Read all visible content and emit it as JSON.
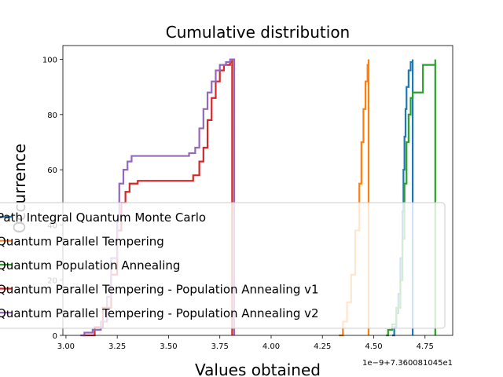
{
  "chart_data": {
    "type": "line",
    "step": true,
    "title": "Cumulative distribution",
    "xlabel": "Values obtained",
    "ylabel": "Occurrence",
    "x_offset_text": "1e−9+7.360081045e1",
    "xlim": [
      2.985,
      4.885
    ],
    "ylim": [
      0,
      105
    ],
    "x_ticks": [
      "3.00",
      "3.25",
      "3.50",
      "3.75",
      "4.00",
      "4.25",
      "4.50",
      "4.75"
    ],
    "x_tick_values": [
      3.0,
      3.25,
      3.5,
      3.75,
      4.0,
      4.25,
      4.5,
      4.75
    ],
    "y_ticks": [
      "0",
      "20",
      "40",
      "60",
      "80",
      "100"
    ],
    "y_tick_values": [
      0,
      20,
      40,
      60,
      80,
      100
    ],
    "legend_position": "lower right",
    "series": [
      {
        "name": "Path Integral Quantum Monte Carlo",
        "color": "#1f77b4",
        "points": [
          [
            4.59,
            0
          ],
          [
            4.6,
            3
          ],
          [
            4.61,
            8
          ],
          [
            4.62,
            15
          ],
          [
            4.63,
            28
          ],
          [
            4.64,
            45
          ],
          [
            4.645,
            60
          ],
          [
            4.65,
            72
          ],
          [
            4.655,
            82
          ],
          [
            4.66,
            90
          ],
          [
            4.67,
            96
          ],
          [
            4.68,
            99
          ],
          [
            4.69,
            100
          ],
          [
            4.69,
            0
          ]
        ]
      },
      {
        "name": "Quantum Parallel Tempering",
        "color": "#ff7f0e",
        "points": [
          [
            4.33,
            0
          ],
          [
            4.35,
            5
          ],
          [
            4.37,
            12
          ],
          [
            4.39,
            22
          ],
          [
            4.41,
            38
          ],
          [
            4.43,
            55
          ],
          [
            4.44,
            70
          ],
          [
            4.45,
            82
          ],
          [
            4.46,
            92
          ],
          [
            4.47,
            98
          ],
          [
            4.475,
            100
          ],
          [
            4.475,
            0
          ]
        ]
      },
      {
        "name": "Quantum Population Annealing",
        "color": "#2ca02c",
        "points": [
          [
            4.56,
            0
          ],
          [
            4.57,
            2
          ],
          [
            4.59,
            4
          ],
          [
            4.61,
            10
          ],
          [
            4.63,
            20
          ],
          [
            4.64,
            35
          ],
          [
            4.65,
            55
          ],
          [
            4.66,
            70
          ],
          [
            4.67,
            80
          ],
          [
            4.68,
            86
          ],
          [
            4.69,
            88
          ],
          [
            4.74,
            98
          ],
          [
            4.78,
            98
          ],
          [
            4.8,
            100
          ],
          [
            4.8,
            0
          ]
        ]
      },
      {
        "name": "Quantum Parallel Tempering - Population Annealing v1",
        "color": "#d62728",
        "points": [
          [
            3.08,
            0
          ],
          [
            3.1,
            0
          ],
          [
            3.14,
            3
          ],
          [
            3.18,
            10
          ],
          [
            3.22,
            22
          ],
          [
            3.25,
            38
          ],
          [
            3.27,
            48
          ],
          [
            3.29,
            52
          ],
          [
            3.31,
            55
          ],
          [
            3.35,
            56
          ],
          [
            3.45,
            56
          ],
          [
            3.55,
            56
          ],
          [
            3.6,
            56
          ],
          [
            3.62,
            58
          ],
          [
            3.65,
            63
          ],
          [
            3.67,
            68
          ],
          [
            3.69,
            78
          ],
          [
            3.71,
            86
          ],
          [
            3.73,
            92
          ],
          [
            3.75,
            96
          ],
          [
            3.77,
            98
          ],
          [
            3.8,
            99
          ],
          [
            3.81,
            100
          ],
          [
            3.81,
            0
          ]
        ]
      },
      {
        "name": "Quantum Parallel Tempering - Population Annealing v2",
        "color": "#9467bd",
        "points": [
          [
            3.07,
            0
          ],
          [
            3.09,
            1
          ],
          [
            3.13,
            2
          ],
          [
            3.17,
            5
          ],
          [
            3.2,
            14
          ],
          [
            3.22,
            28
          ],
          [
            3.25,
            42
          ],
          [
            3.26,
            55
          ],
          [
            3.28,
            60
          ],
          [
            3.3,
            63
          ],
          [
            3.32,
            65
          ],
          [
            3.45,
            65
          ],
          [
            3.55,
            65
          ],
          [
            3.6,
            66
          ],
          [
            3.63,
            68
          ],
          [
            3.65,
            75
          ],
          [
            3.67,
            82
          ],
          [
            3.69,
            88
          ],
          [
            3.71,
            92
          ],
          [
            3.73,
            96
          ],
          [
            3.75,
            98
          ],
          [
            3.78,
            99
          ],
          [
            3.8,
            100
          ],
          [
            3.82,
            100
          ],
          [
            3.82,
            0
          ]
        ]
      }
    ]
  }
}
